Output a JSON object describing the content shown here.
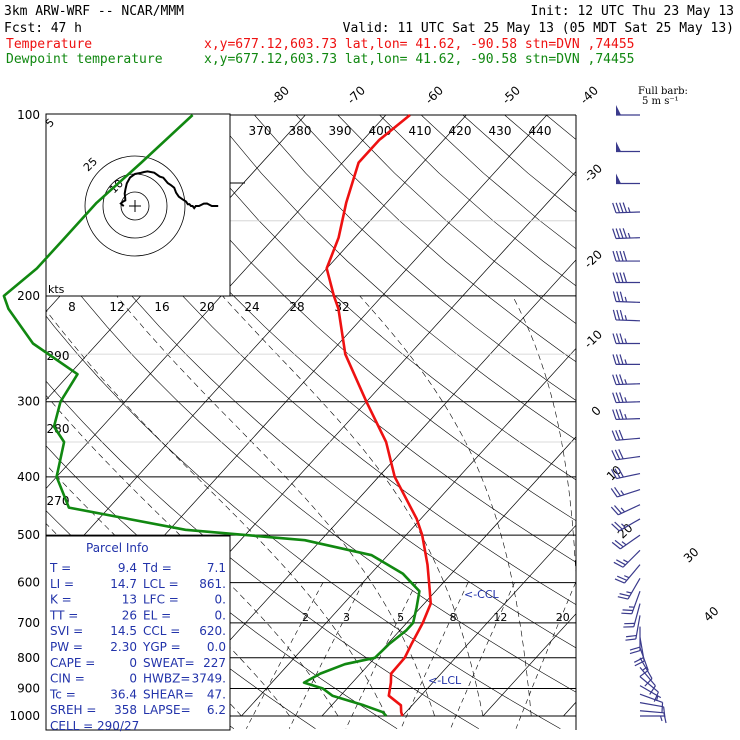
{
  "header": {
    "model": "3km ARW-WRF -- NCAR/MMM",
    "init": "Init: 12 UTC Thu 23 May 13",
    "fcst_label": "Fcst:",
    "fcst_value": "47 h",
    "valid": "Valid: 11 UTC Sat 25 May 13 (05 MDT Sat 25 May 13)",
    "temp_legend": "Temperature",
    "temp_location": "x,y=677.12,603.73   lat,lon= 41.62, -90.58  stn=DVN ,74455",
    "dew_legend": "Dewpoint temperature",
    "dew_location": "x,y=677.12,603.73   lat,lon= 41.62, -90.58  stn=DVN ,74455"
  },
  "colors": {
    "temperature": "#ee1111",
    "dewpoint": "#118811",
    "barbs": "#3a3a8c",
    "parcel_text": "#2233aa",
    "grid": "#000000"
  },
  "barb_legend": {
    "title": "Full barb:",
    "value": "5 m s⁻¹"
  },
  "parcel_info": {
    "title": "Parcel Info",
    "rows": [
      [
        "T  =",
        "9.4",
        "Td =",
        "7.1"
      ],
      [
        "LI =",
        "14.7",
        "LCL =",
        "861."
      ],
      [
        "K  =",
        "13",
        "LFC =",
        "0."
      ],
      [
        "TT =",
        "26",
        "EL  =",
        "0."
      ],
      [
        "SVI =",
        "14.5",
        "CCL =",
        "620."
      ],
      [
        "PW =",
        "2.30",
        "YGP =",
        "0.0"
      ],
      [
        "CAPE =",
        "0",
        "SWEAT=",
        "227"
      ],
      [
        "CIN =",
        "0",
        "HWBZ=",
        "3749."
      ],
      [
        "Tc =",
        "36.4",
        "SHEAR=",
        "47."
      ],
      [
        "SREH =",
        "358",
        "LAPSE=",
        "6.2"
      ]
    ],
    "cell": "CELL = 290/27"
  },
  "annotations": {
    "ccl": "<-CCL",
    "lcl": "<-LCL",
    "hodo_units": "kts"
  },
  "chart_data": {
    "type": "line",
    "title": "",
    "pressure_levels": [
      100,
      200,
      300,
      400,
      500,
      600,
      700,
      800,
      900,
      1000
    ],
    "pressure_labels": [
      "100",
      "200",
      "300",
      "400",
      "500",
      "600",
      "700",
      "800",
      "900",
      "1000"
    ],
    "isotherm_labels": [
      -80,
      -70,
      -60,
      -50,
      -40,
      -30,
      -20,
      -10,
      0,
      10,
      20,
      30,
      40
    ],
    "theta_e_labels": [
      370,
      380,
      390,
      400,
      410,
      420,
      430,
      440
    ],
    "theta_labels": [
      290,
      280,
      270
    ],
    "mixing_ratio_labels": [
      2,
      3,
      5,
      8,
      12,
      20
    ],
    "height_scale_labels": [
      8,
      12,
      16,
      20,
      24,
      28,
      32
    ],
    "series": [
      {
        "name": "Temperature",
        "points": [
          [
            1000,
            10
          ],
          [
            985,
            9.4
          ],
          [
            960,
            8.6
          ],
          [
            925,
            6
          ],
          [
            880,
            4.8
          ],
          [
            850,
            3.8
          ],
          [
            800,
            3.7
          ],
          [
            760,
            3
          ],
          [
            700,
            2
          ],
          [
            650,
            0.8
          ],
          [
            620,
            -0.7
          ],
          [
            560,
            -4
          ],
          [
            500,
            -8
          ],
          [
            470,
            -10.5
          ],
          [
            400,
            -18
          ],
          [
            350,
            -23
          ],
          [
            300,
            -30
          ],
          [
            250,
            -38
          ],
          [
            210,
            -44
          ],
          [
            200,
            -46
          ],
          [
            180,
            -50
          ],
          [
            160,
            -52
          ],
          [
            140,
            -55
          ],
          [
            120,
            -58
          ],
          [
            110,
            -58
          ],
          [
            100,
            -57
          ]
        ]
      },
      {
        "name": "Dewpoint temperature",
        "points": [
          [
            1000,
            8
          ],
          [
            985,
            7.1
          ],
          [
            960,
            4
          ],
          [
            925,
            -1
          ],
          [
            900,
            -3
          ],
          [
            880,
            -6
          ],
          [
            850,
            -5
          ],
          [
            820,
            -3
          ],
          [
            800,
            0
          ],
          [
            760,
            0.2
          ],
          [
            720,
            0.8
          ],
          [
            700,
            0.8
          ],
          [
            660,
            -0.5
          ],
          [
            620,
            -2
          ],
          [
            580,
            -6
          ],
          [
            540,
            -12
          ],
          [
            510,
            -22
          ],
          [
            490,
            -38
          ],
          [
            450,
            -55
          ],
          [
            400,
            -60
          ],
          [
            350,
            -63
          ],
          [
            330,
            -66
          ],
          [
            300,
            -68
          ],
          [
            270,
            -69
          ],
          [
            240,
            -78
          ],
          [
            210,
            -85
          ],
          [
            200,
            -87
          ],
          [
            180,
            -86
          ],
          [
            160,
            -86
          ],
          [
            140,
            -86
          ],
          [
            120,
            -85
          ],
          [
            100,
            -84
          ]
        ]
      }
    ],
    "wind_profile": [
      {
        "p": 100,
        "dir": 270,
        "spd": 52
      },
      {
        "p": 115,
        "dir": 270,
        "spd": 50
      },
      {
        "p": 130,
        "dir": 270,
        "spd": 48
      },
      {
        "p": 145,
        "dir": 268,
        "spd": 45
      },
      {
        "p": 160,
        "dir": 268,
        "spd": 43
      },
      {
        "p": 175,
        "dir": 270,
        "spd": 40
      },
      {
        "p": 190,
        "dir": 270,
        "spd": 38
      },
      {
        "p": 205,
        "dir": 272,
        "spd": 37
      },
      {
        "p": 220,
        "dir": 272,
        "spd": 37
      },
      {
        "p": 240,
        "dir": 270,
        "spd": 36
      },
      {
        "p": 260,
        "dir": 270,
        "spd": 35
      },
      {
        "p": 280,
        "dir": 268,
        "spd": 34
      },
      {
        "p": 300,
        "dir": 268,
        "spd": 34
      },
      {
        "p": 320,
        "dir": 268,
        "spd": 33
      },
      {
        "p": 345,
        "dir": 265,
        "spd": 32
      },
      {
        "p": 370,
        "dir": 262,
        "spd": 30
      },
      {
        "p": 395,
        "dir": 258,
        "spd": 28
      },
      {
        "p": 420,
        "dir": 252,
        "spd": 27
      },
      {
        "p": 445,
        "dir": 245,
        "spd": 27
      },
      {
        "p": 470,
        "dir": 240,
        "spd": 26
      },
      {
        "p": 500,
        "dir": 235,
        "spd": 25
      },
      {
        "p": 530,
        "dir": 225,
        "spd": 25
      },
      {
        "p": 560,
        "dir": 220,
        "spd": 24
      },
      {
        "p": 590,
        "dir": 210,
        "spd": 24
      },
      {
        "p": 620,
        "dir": 200,
        "spd": 23
      },
      {
        "p": 650,
        "dir": 195,
        "spd": 22
      },
      {
        "p": 680,
        "dir": 190,
        "spd": 21
      },
      {
        "p": 710,
        "dir": 180,
        "spd": 20
      },
      {
        "p": 740,
        "dir": 170,
        "spd": 18
      },
      {
        "p": 770,
        "dir": 160,
        "spd": 15
      },
      {
        "p": 800,
        "dir": 150,
        "spd": 12
      },
      {
        "p": 830,
        "dir": 140,
        "spd": 10
      },
      {
        "p": 860,
        "dir": 130,
        "spd": 8
      },
      {
        "p": 890,
        "dir": 120,
        "spd": 7
      },
      {
        "p": 920,
        "dir": 110,
        "spd": 8
      },
      {
        "p": 950,
        "dir": 100,
        "spd": 9
      },
      {
        "p": 980,
        "dir": 95,
        "spd": 8
      },
      {
        "p": 1000,
        "dir": 90,
        "spd": 7
      }
    ]
  }
}
